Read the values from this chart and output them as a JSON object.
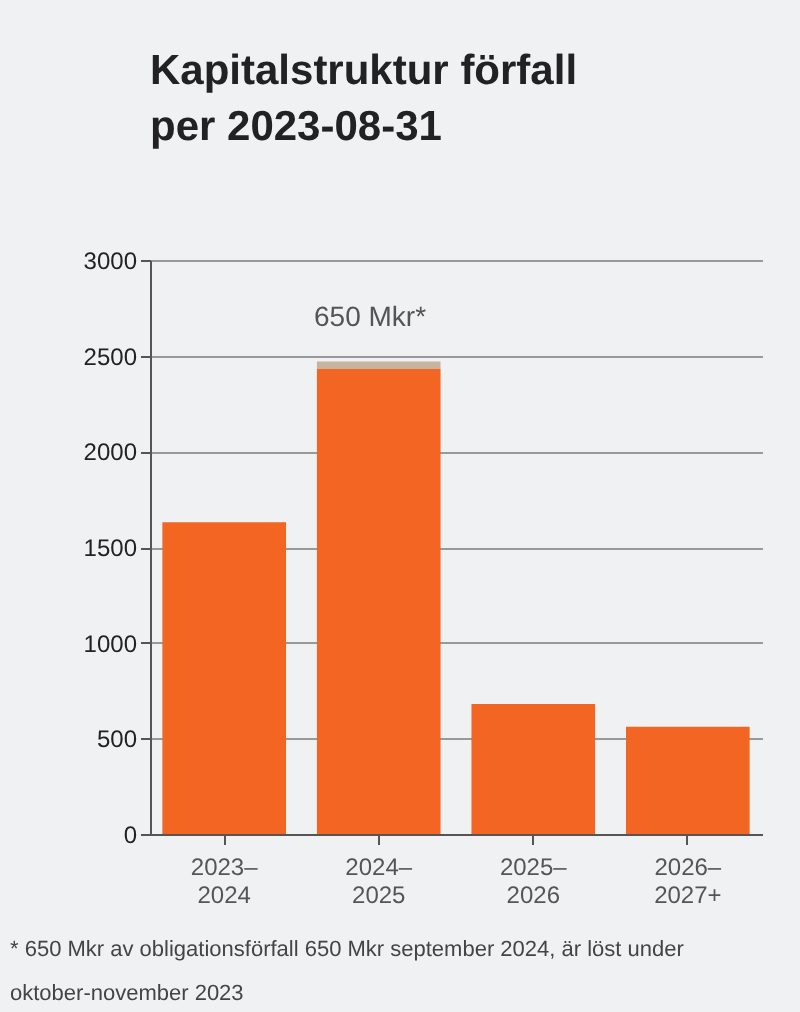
{
  "chart_data": {
    "type": "bar",
    "title": "Kapitalstruktur förfall\nper 2023-08-31",
    "categories": [
      "2023–\n2024",
      "2024–\n2025",
      "2025–\n2026",
      "2026–\n2027+"
    ],
    "stacked": true,
    "series": [
      {
        "color": "#f26522",
        "values": [
          1630,
          2430,
          680,
          560
        ]
      },
      {
        "color": "#c8b49e",
        "values": [
          null,
          40,
          null,
          null
        ]
      }
    ],
    "ylim": [
      0,
      3000
    ],
    "yticks": [
      0,
      500,
      1000,
      1500,
      2000,
      2500,
      3000
    ],
    "grid": "y",
    "annotations": [
      "650 Mkr*",
      "* 650 Mkr av obligationsförfall 650 Mkr september 2024, är löst under\noktober-november 2023"
    ]
  }
}
